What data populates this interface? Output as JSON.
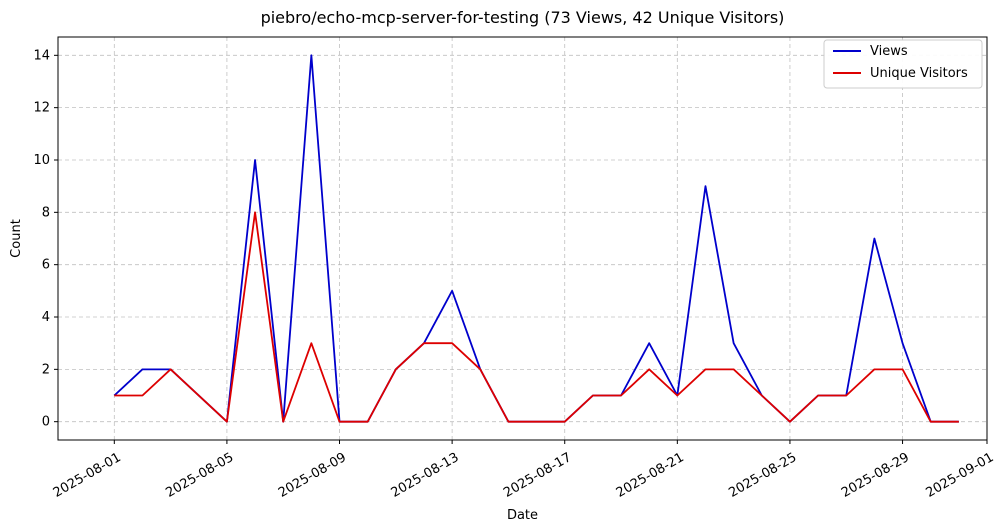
{
  "chart_data": {
    "type": "line",
    "title": "piebro/echo-mcp-server-for-testing (73 Views, 42 Unique Visitors)",
    "xlabel": "Date",
    "ylabel": "Count",
    "xlim": [
      "2025-07-30",
      "2025-09-01"
    ],
    "ylim": [
      -0.7,
      14.7
    ],
    "grid": true,
    "legend_position": "top-right",
    "xticks": [
      "2025-08-01",
      "2025-08-05",
      "2025-08-09",
      "2025-08-13",
      "2025-08-17",
      "2025-08-21",
      "2025-08-25",
      "2025-08-29",
      "2025-09-01"
    ],
    "yticks": [
      0,
      2,
      4,
      6,
      8,
      10,
      12,
      14
    ],
    "x": [
      "2025-08-01",
      "2025-08-02",
      "2025-08-03",
      "2025-08-05",
      "2025-08-06",
      "2025-08-07",
      "2025-08-08",
      "2025-08-09",
      "2025-08-10",
      "2025-08-11",
      "2025-08-12",
      "2025-08-13",
      "2025-08-14",
      "2025-08-15",
      "2025-08-17",
      "2025-08-18",
      "2025-08-19",
      "2025-08-20",
      "2025-08-21",
      "2025-08-22",
      "2025-08-23",
      "2025-08-24",
      "2025-08-25",
      "2025-08-26",
      "2025-08-27",
      "2025-08-28",
      "2025-08-29",
      "2025-08-30",
      "2025-08-31"
    ],
    "series": [
      {
        "name": "Views",
        "color": "#0000cc",
        "values": [
          1,
          2,
          2,
          0,
          10,
          0,
          14,
          0,
          0,
          2,
          3,
          5,
          2,
          0,
          0,
          1,
          1,
          3,
          1,
          9,
          3,
          1,
          0,
          1,
          1,
          7,
          3,
          0,
          0
        ]
      },
      {
        "name": "Unique Visitors",
        "color": "#dd0000",
        "values": [
          1,
          1,
          2,
          0,
          8,
          0,
          3,
          0,
          0,
          2,
          3,
          3,
          2,
          0,
          0,
          1,
          1,
          2,
          1,
          2,
          2,
          1,
          0,
          1,
          1,
          2,
          2,
          0,
          0
        ]
      }
    ]
  }
}
